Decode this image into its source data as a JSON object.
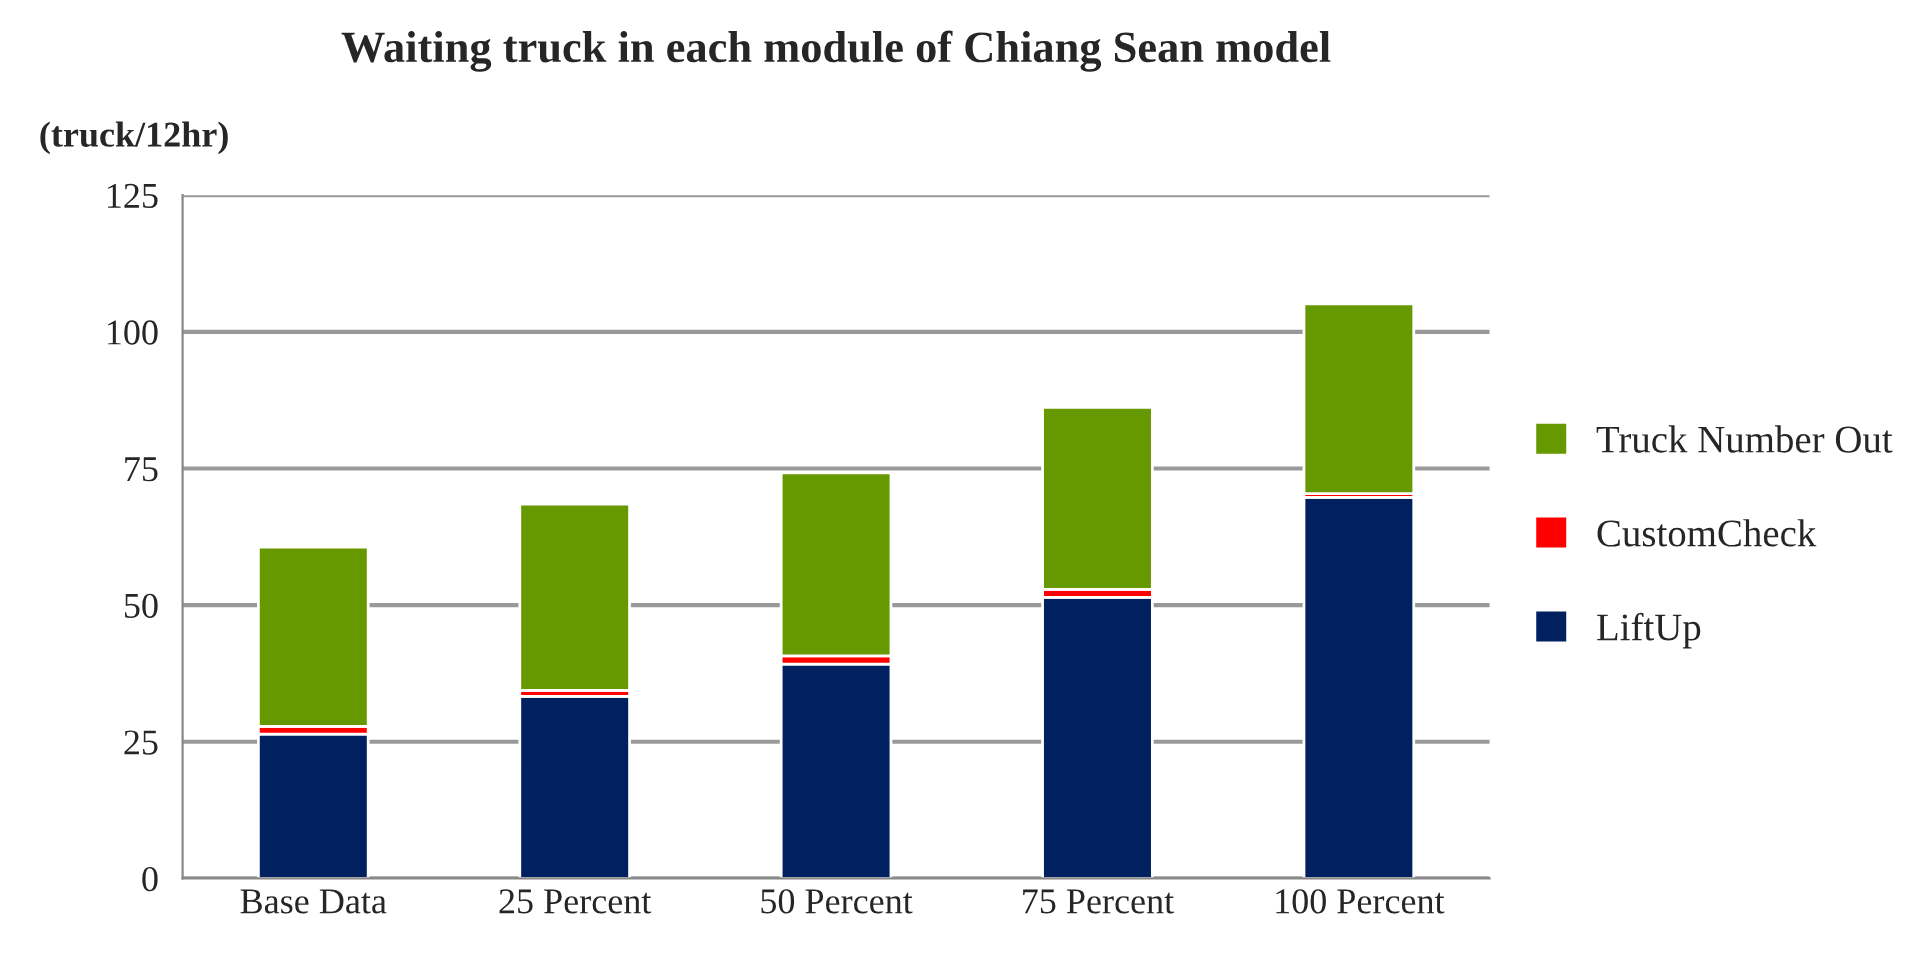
{
  "chart_data": {
    "type": "bar",
    "title": "Waiting truck in each module of Chiang Sean model",
    "ylabel": "(truck/12hr)",
    "categories": [
      "Base Data",
      "25 Percent",
      "50 Percent",
      "75 Percent",
      "100 Percent"
    ],
    "stacked": true,
    "series": [
      {
        "name": "LiftUp",
        "color": "#002060",
        "values": [
          26.4,
          33.3,
          39.2,
          51.4,
          69.7
        ]
      },
      {
        "name": "CustomCheck",
        "color": "#ff0000",
        "values": [
          1.4,
          1.1,
          1.5,
          1.5,
          0.7
        ]
      },
      {
        "name": "Truck Number Out",
        "color": "#669900",
        "values": [
          32.8,
          34.1,
          33.5,
          33.3,
          34.7
        ]
      }
    ],
    "ylim": [
      0,
      125
    ],
    "yticks": [
      0,
      25,
      50,
      75,
      100,
      125
    ],
    "grid": "y",
    "legend": "right"
  }
}
